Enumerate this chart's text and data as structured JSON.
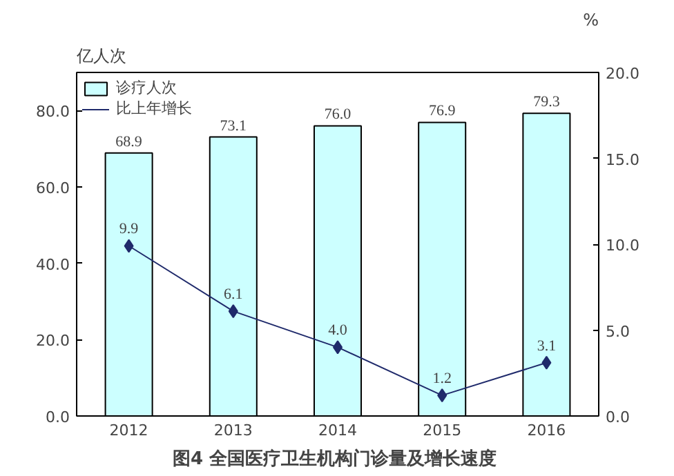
{
  "chart_data": {
    "type": "bar",
    "title": "图4  全国医疗卫生机构门诊量及增长速度",
    "ylabel": "亿人次",
    "y2label": "%",
    "categories": [
      "2012",
      "2013",
      "2014",
      "2015",
      "2016"
    ],
    "series": [
      {
        "name": "诊疗人次",
        "color": "#ccffff",
        "values": [
          68.9,
          73.1,
          76.0,
          76.9,
          79.3
        ],
        "value_labels": [
          "68.9",
          "73.1",
          "76.0",
          "76.9",
          "79.3"
        ]
      },
      {
        "name": "比上年增长",
        "type": "line",
        "axis": "y2",
        "color": "#1f2a6b",
        "values": [
          9.9,
          6.1,
          4.0,
          1.2,
          3.1
        ],
        "value_labels": [
          "9.9",
          "6.1",
          "4.0",
          "1.2",
          "3.1"
        ]
      }
    ],
    "ylim": [
      0,
      90
    ],
    "yticks": [
      "0.0",
      "20.0",
      "40.0",
      "60.0",
      "80.0"
    ],
    "y2lim": [
      0,
      20
    ],
    "y2ticks": [
      "0.0",
      "5.0",
      "10.0",
      "15.0",
      "20.0"
    ],
    "legend": "top left",
    "marker": "diamond",
    "line_style": "solid",
    "grid": false
  }
}
